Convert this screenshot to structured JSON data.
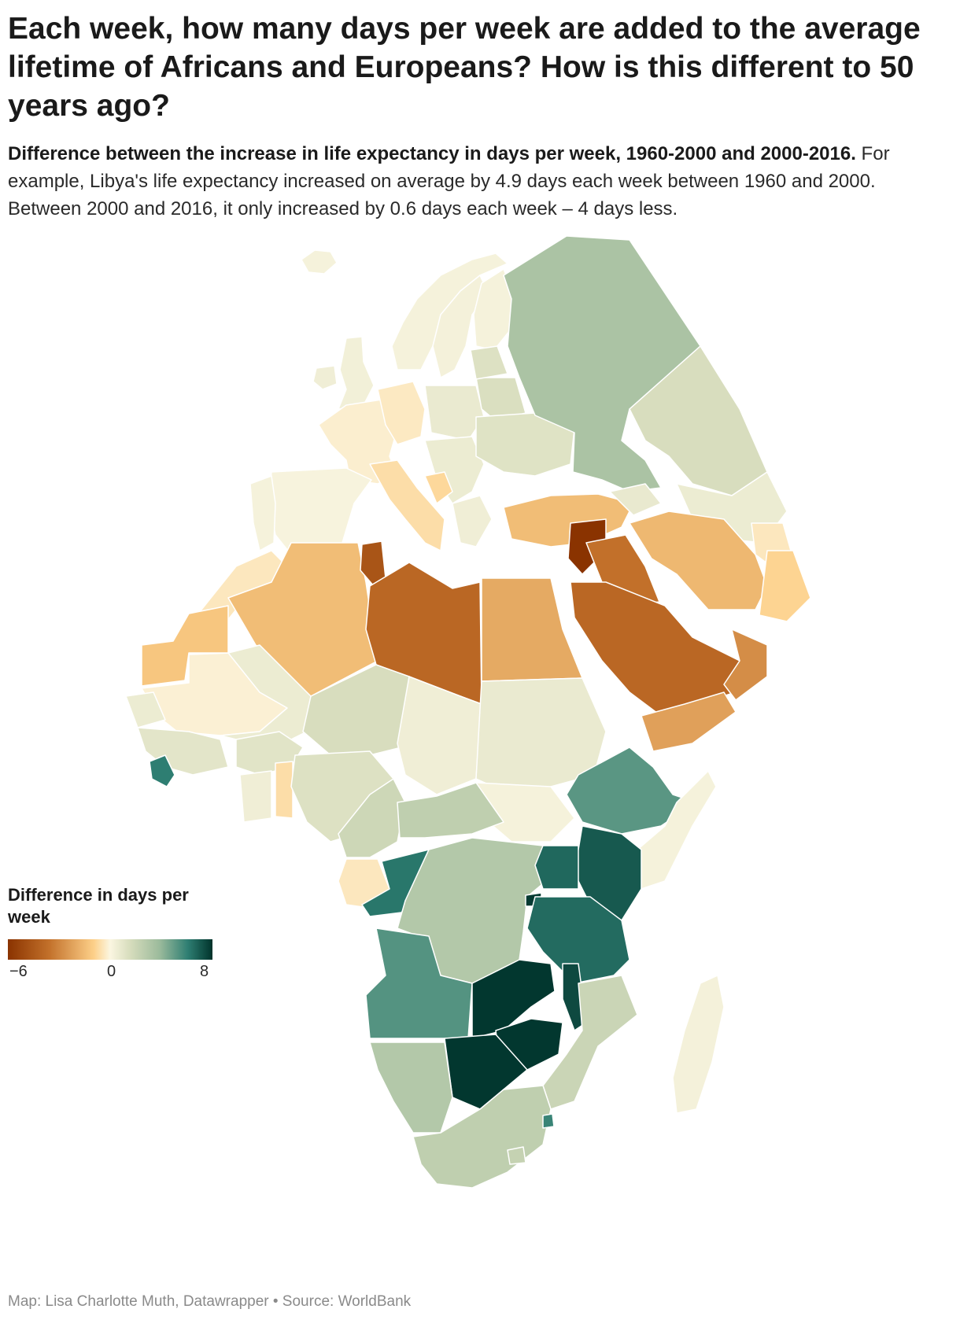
{
  "title": "Each week, how many days per week are added to the average lifetime of Africans and Europeans? How is this different to 50 years ago?",
  "subtitle": {
    "bold": "Difference between the increase in life expectancy in days per week, 1960-2000 and 2000-2016.",
    "rest": " For example, Libya's life expectancy increased on average by 4.9 days each week between 1960 and 2000. Between 2000 and 2016, it only increased by 0.6 days each week – 4 days less."
  },
  "legend": {
    "title": "Difference in days per week",
    "min_label": "−6",
    "mid_label": "0",
    "max_label": "8",
    "range": [
      -6,
      8
    ],
    "colors": [
      "#8a3300",
      "#c2702a",
      "#fdd089",
      "#fbf6e1",
      "#d6dcbc",
      "#9cbb9c",
      "#2e7e72",
      "#00332b"
    ]
  },
  "footer": "Map: Lisa Charlotte Muth, Datawrapper • Source: WorldBank",
  "regions": [
    {
      "name": "Iceland",
      "value": 0.3
    },
    {
      "name": "Norway",
      "value": 0.3
    },
    {
      "name": "Sweden",
      "value": 0.4
    },
    {
      "name": "Finland",
      "value": 0.3
    },
    {
      "name": "United Kingdom",
      "value": 0.5
    },
    {
      "name": "Ireland",
      "value": 0.6
    },
    {
      "name": "France",
      "value": -0.4
    },
    {
      "name": "Spain",
      "value": 0.2
    },
    {
      "name": "Portugal",
      "value": 0.3
    },
    {
      "name": "Germany",
      "value": -0.7
    },
    {
      "name": "Poland",
      "value": 0.9
    },
    {
      "name": "Italy",
      "value": -1.3
    },
    {
      "name": "Balkans",
      "value": 0.8
    },
    {
      "name": "Bosnia and Herzegovina",
      "value": -1.6
    },
    {
      "name": "Greece",
      "value": 0.6
    },
    {
      "name": "Belarus",
      "value": 1.8
    },
    {
      "name": "Ukraine",
      "value": 1.5
    },
    {
      "name": "Baltics",
      "value": 1.6
    },
    {
      "name": "Russia",
      "value": 3.5
    },
    {
      "name": "Kazakhstan",
      "value": 1.9
    },
    {
      "name": "Central Asia",
      "value": 0.8
    },
    {
      "name": "Turkey",
      "value": -2.4
    },
    {
      "name": "Caucasus",
      "value": 1.0
    },
    {
      "name": "Syria",
      "value": -6.0
    },
    {
      "name": "Iraq",
      "value": -4.0
    },
    {
      "name": "Iran",
      "value": -2.5
    },
    {
      "name": "Afghanistan",
      "value": -0.8
    },
    {
      "name": "Pakistan",
      "value": -1.8
    },
    {
      "name": "Saudi Arabia",
      "value": -4.3
    },
    {
      "name": "Yemen",
      "value": -3.0
    },
    {
      "name": "Oman",
      "value": -3.4
    },
    {
      "name": "Morocco",
      "value": -0.8
    },
    {
      "name": "Algeria",
      "value": -2.4
    },
    {
      "name": "Tunisia",
      "value": -4.9
    },
    {
      "name": "Libya",
      "value": -4.3
    },
    {
      "name": "Egypt",
      "value": -2.8
    },
    {
      "name": "Western Sahara",
      "value": -2.2
    },
    {
      "name": "Mauritania",
      "value": -0.3
    },
    {
      "name": "Mali",
      "value": 0.8
    },
    {
      "name": "Niger",
      "value": 1.9
    },
    {
      "name": "Chad",
      "value": 0.6
    },
    {
      "name": "Sudan",
      "value": 0.9
    },
    {
      "name": "South Sudan",
      "value": 0.3
    },
    {
      "name": "Senegal",
      "value": 0.8
    },
    {
      "name": "West Africa coast",
      "value": 1.3
    },
    {
      "name": "Burkina Faso",
      "value": 1.4
    },
    {
      "name": "Ghana",
      "value": 0.6
    },
    {
      "name": "Togo",
      "value": -1.3
    },
    {
      "name": "Nigeria",
      "value": 1.6
    },
    {
      "name": "Liberia",
      "value": 6.0
    },
    {
      "name": "Cameroon",
      "value": 2.3
    },
    {
      "name": "Central African Republic",
      "value": 2.8
    },
    {
      "name": "Gabon",
      "value": -0.8
    },
    {
      "name": "Congo",
      "value": 6.2
    },
    {
      "name": "DR Congo",
      "value": 3.2
    },
    {
      "name": "Ethiopia",
      "value": 5.2
    },
    {
      "name": "Somalia",
      "value": 0.3
    },
    {
      "name": "Kenya",
      "value": 7.0
    },
    {
      "name": "Uganda",
      "value": 6.6
    },
    {
      "name": "Rwanda",
      "value": 7.8
    },
    {
      "name": "Tanzania",
      "value": 6.5
    },
    {
      "name": "Angola",
      "value": 5.3
    },
    {
      "name": "Zambia",
      "value": 7.9
    },
    {
      "name": "Malawi",
      "value": 7.4
    },
    {
      "name": "Mozambique",
      "value": 2.4
    },
    {
      "name": "Zimbabwe",
      "value": 7.9
    },
    {
      "name": "Botswana",
      "value": 7.9
    },
    {
      "name": "Namibia",
      "value": 3.2
    },
    {
      "name": "South Africa",
      "value": 2.8
    },
    {
      "name": "Lesotho",
      "value": 2.6
    },
    {
      "name": "Eswatini",
      "value": 5.8
    },
    {
      "name": "Madagascar",
      "value": 0.4
    }
  ]
}
